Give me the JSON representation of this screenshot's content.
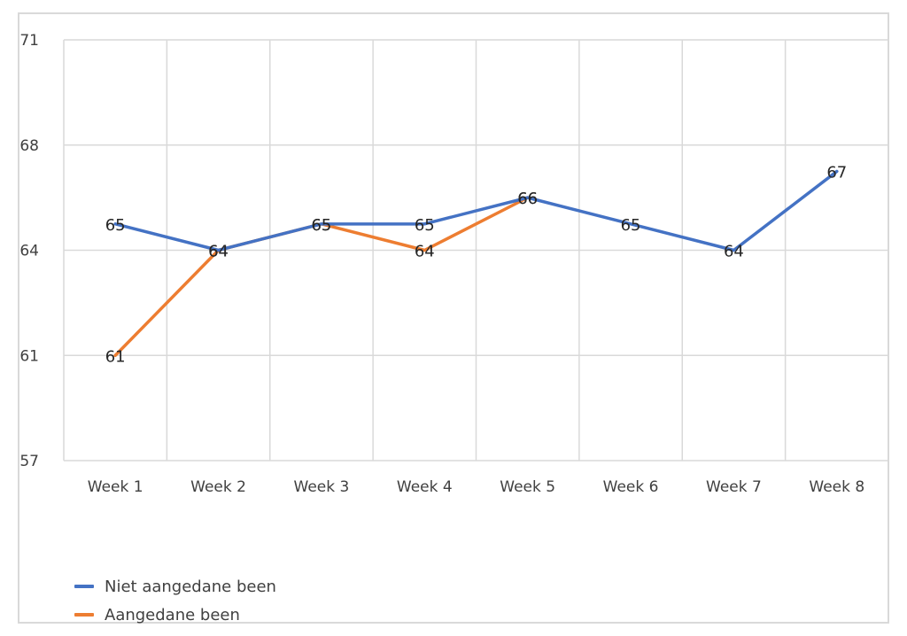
{
  "chart_data": {
    "type": "line",
    "title": "",
    "xlabel": "",
    "ylabel": "",
    "categories": [
      "Week 1",
      "Week 2",
      "Week 3",
      "Week 4",
      "Week 5",
      "Week 6",
      "Week 7",
      "Week 8"
    ],
    "y_ticks": [
      "71",
      "68",
      "64",
      "61",
      "57"
    ],
    "ylim": [
      57,
      71
    ],
    "grid": true,
    "legend_position": "bottom-left",
    "series": [
      {
        "name": "Niet aangedane been",
        "color": "#4472c4",
        "values": [
          65,
          64,
          65,
          65,
          66,
          65,
          64,
          67
        ],
        "labels": [
          "65",
          "64",
          "65",
          "65",
          "66",
          "65",
          "64",
          "67"
        ]
      },
      {
        "name": "Aangedane been",
        "color": "#ed7d31",
        "values": [
          61,
          64,
          65,
          64,
          66,
          null,
          null,
          null
        ],
        "labels": [
          "61",
          "64",
          "65",
          "64",
          "66",
          "",
          "",
          ""
        ]
      }
    ]
  }
}
